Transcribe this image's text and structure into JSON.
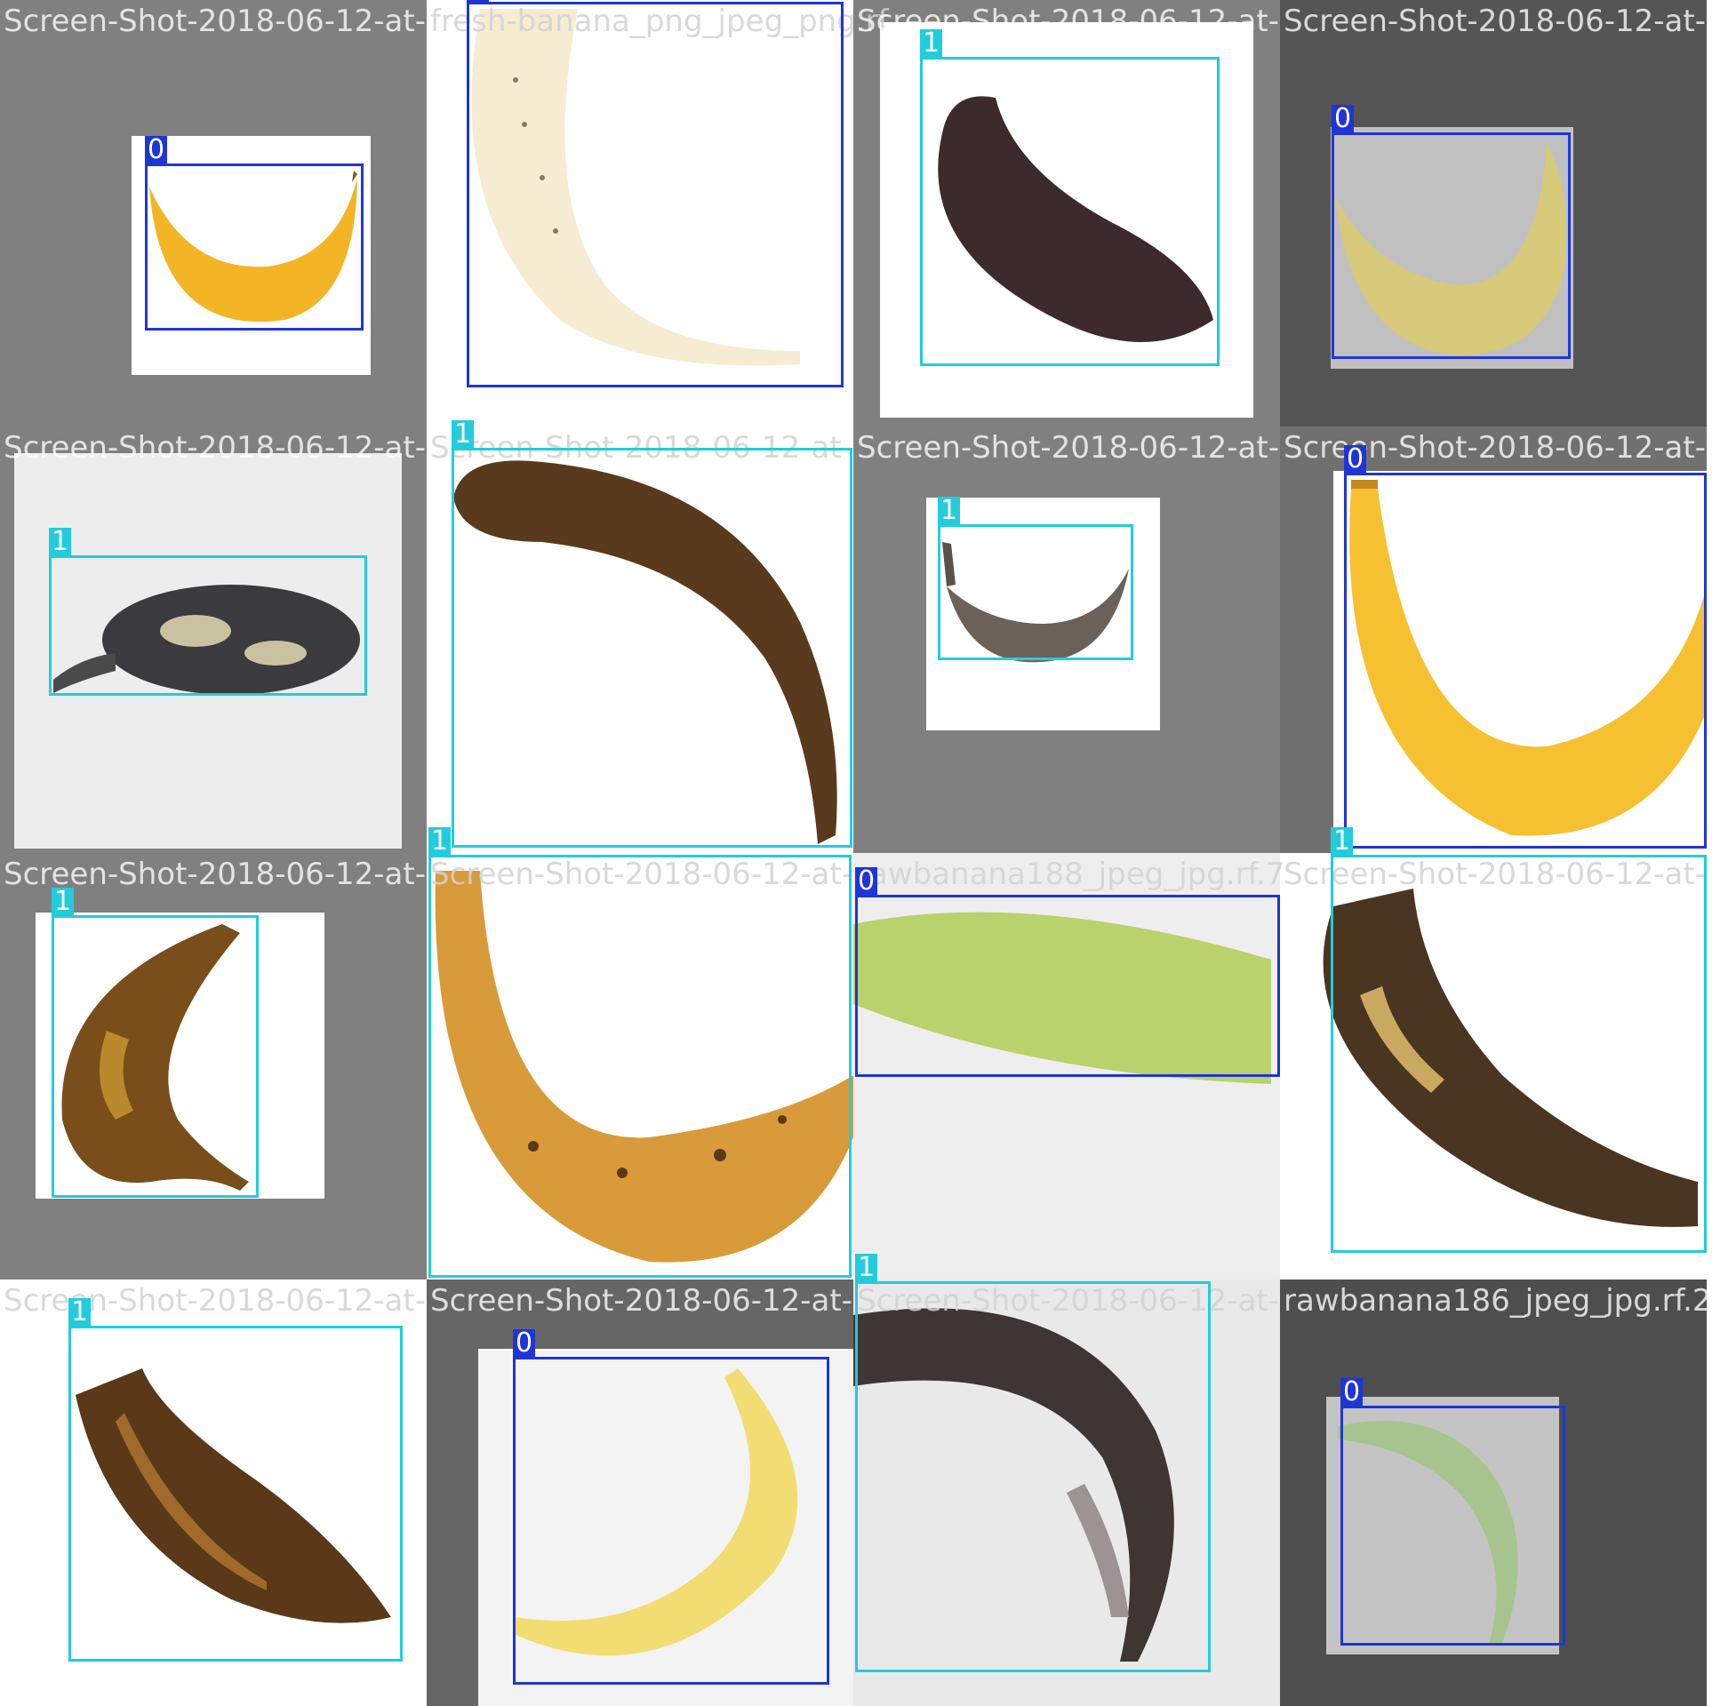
{
  "colors": {
    "class_0": "#1f35d6",
    "class_1": "#22ccdd"
  },
  "tiles": [
    {
      "label": "Screen-Shot-2018-06-12-at-",
      "box": {
        "cls": "0"
      }
    },
    {
      "label": "fresh-banana_png_jpeg_png.rf",
      "box": {
        "cls": "0"
      }
    },
    {
      "label": "Screen-Shot-2018-06-12-at-",
      "box": {
        "cls": "1"
      }
    },
    {
      "label": "Screen-Shot-2018-06-12-at-",
      "box": {
        "cls": "0"
      }
    },
    {
      "label": "Screen-Shot-2018-06-12-at-",
      "box": {
        "cls": "1"
      }
    },
    {
      "label": "Screen-Shot-2018-06-12-at-",
      "box": {
        "cls": "1"
      }
    },
    {
      "label": "Screen-Shot-2018-06-12-at-",
      "box": {
        "cls": "1"
      }
    },
    {
      "label": "Screen-Shot-2018-06-12-at-",
      "box": {
        "cls": "0"
      }
    },
    {
      "label": "Screen-Shot-2018-06-12-at-",
      "box": {
        "cls": "1"
      }
    },
    {
      "label": "Screen-Shot-2018-06-12-at-",
      "box": {
        "cls": "1"
      }
    },
    {
      "label": "rawbanana188_jpeg_jpg.rf.7",
      "box": {
        "cls": "0"
      }
    },
    {
      "label": "Screen-Shot-2018-06-12-at-",
      "box": {
        "cls": "1"
      }
    },
    {
      "label": "Screen-Shot-2018-06-12-at-",
      "box": {
        "cls": "1"
      }
    },
    {
      "label": "Screen-Shot-2018-06-12-at-",
      "box": {
        "cls": "0"
      }
    },
    {
      "label": "Screen-Shot-2018-06-12-at-",
      "box": {
        "cls": "1"
      }
    },
    {
      "label": "rawbanana186_jpeg_jpg.rf.2",
      "box": {
        "cls": "0"
      }
    }
  ]
}
